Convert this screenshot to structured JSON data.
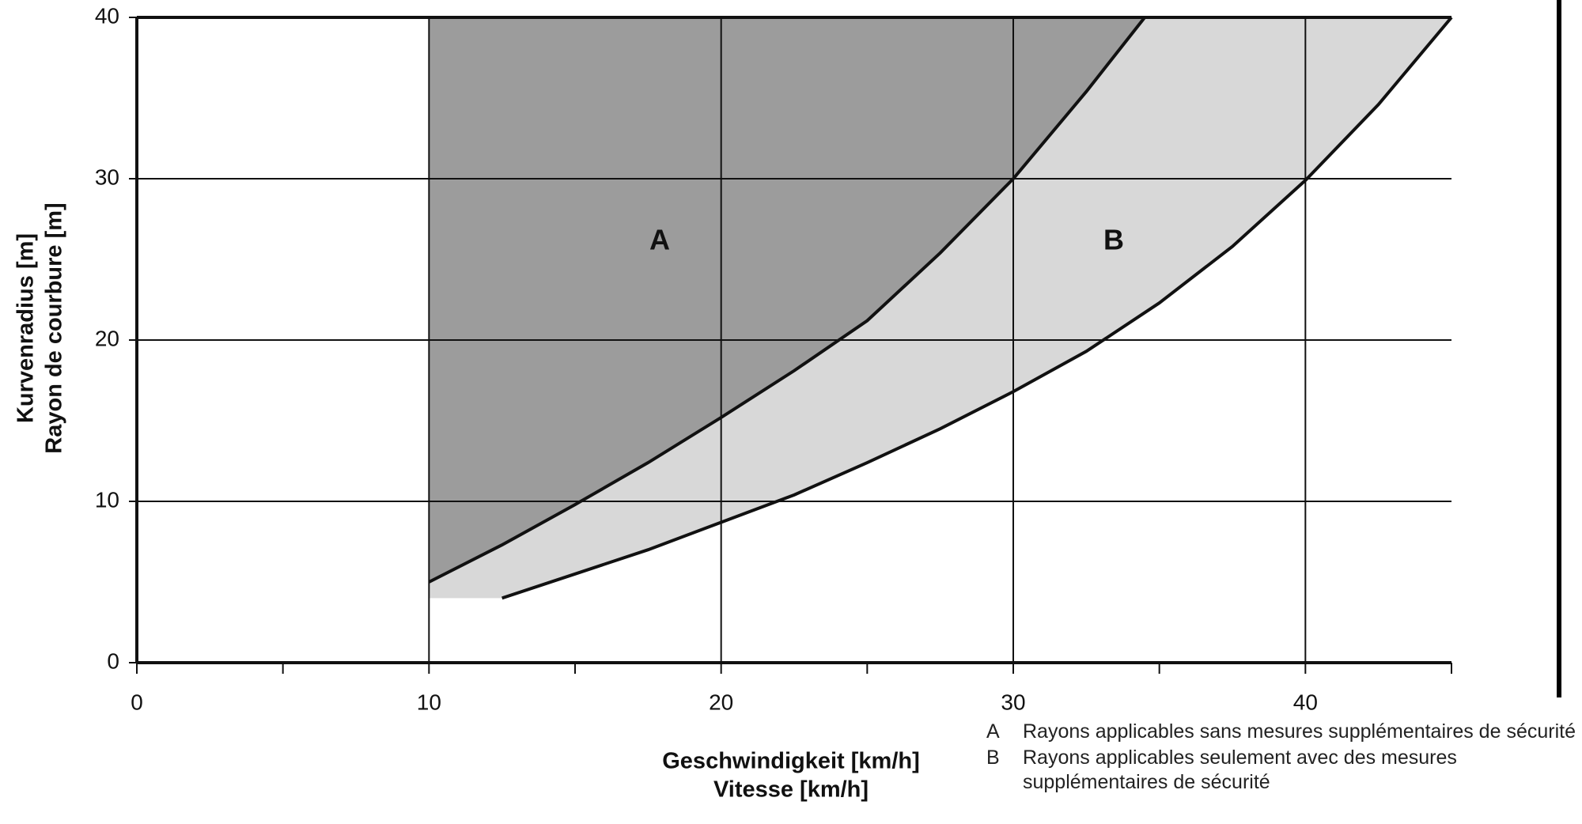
{
  "chart_data": {
    "type": "area",
    "xlabel": [
      "Geschwindigkeit [km/h]",
      "Vitesse [km/h]"
    ],
    "ylabel": [
      "Kurvenradius [m]",
      "Rayon de courbure [m]"
    ],
    "xlim": [
      0,
      45
    ],
    "xticks": [
      0,
      10,
      20,
      30,
      40
    ],
    "xminor_ticks": [
      5,
      15,
      25,
      35,
      45
    ],
    "ylim": [
      0,
      40
    ],
    "yticks": [
      0,
      10,
      20,
      30,
      40
    ],
    "grid": true,
    "series": [
      {
        "name": "A",
        "color": "#9c9c9c",
        "x": [
          10,
          12.5,
          15,
          17.5,
          20,
          22.5,
          25,
          27.5,
          30,
          32.5,
          34.5
        ],
        "values": [
          5,
          7.3,
          9.8,
          12.4,
          15.2,
          18.1,
          21.2,
          25.4,
          30,
          35.4,
          40
        ]
      },
      {
        "name": "B",
        "color": "#d8d8d8",
        "x": [
          12.5,
          15,
          17.5,
          20,
          22.5,
          25,
          27.5,
          30,
          32.5,
          35,
          37.5,
          40,
          42.5,
          45
        ],
        "values": [
          4,
          5.5,
          7,
          8.7,
          10.4,
          12.4,
          14.5,
          16.8,
          19.3,
          22.3,
          25.8,
          29.9,
          34.6,
          40
        ]
      }
    ],
    "legend": [
      "Rayons applicables sans mesures supplémentaires de sécurité",
      "Rayons applicables seulement avec des mesures supplémentaires de sécurité"
    ]
  }
}
